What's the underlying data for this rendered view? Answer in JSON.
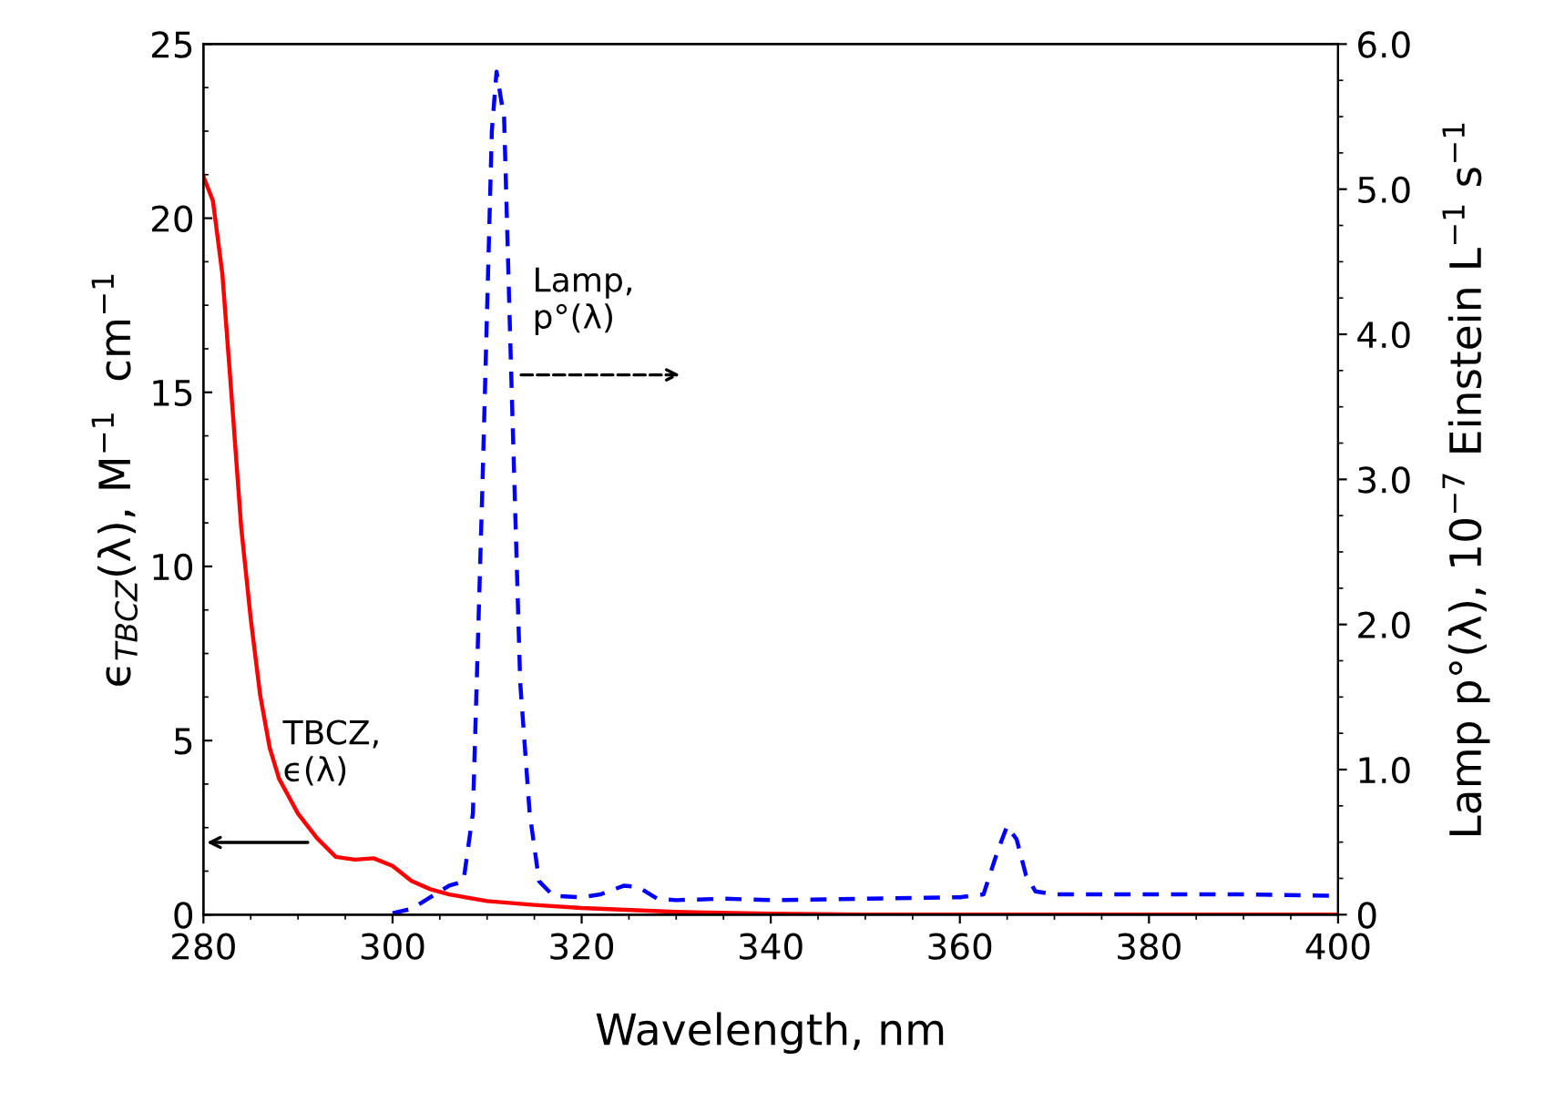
{
  "chart_data": {
    "type": "line",
    "xlabel": "Wavelength, nm",
    "ylabel": "ϵ$_{TBCZ}$(λ), M$^{−1}$  cm$^{−1}$",
    "y2label": "Lamp p°(λ), 10$^{−7}$ Einstein L$^{−1}$ s$^{−1}$",
    "xlim": [
      280,
      400
    ],
    "xticks": [
      280,
      300,
      320,
      340,
      360,
      380,
      400
    ],
    "ylim": [
      0,
      25
    ],
    "yticks": [
      0,
      5,
      10,
      15,
      20,
      25
    ],
    "y2lim": [
      0,
      6
    ],
    "y2ticks": [
      {
        "value": 0,
        "label": "0"
      },
      {
        "value": 1,
        "label": "1.0"
      },
      {
        "value": 2,
        "label": "2.0"
      },
      {
        "value": 3,
        "label": "3.0"
      },
      {
        "value": 4,
        "label": "4.0"
      },
      {
        "value": 5,
        "label": "5.0"
      },
      {
        "value": 6,
        "label": "6.0"
      }
    ],
    "grid": false,
    "legend": false,
    "marker": "none",
    "series": [
      {
        "color": "#ff0000",
        "line_style": "solid",
        "x": [
          280,
          281,
          282,
          283,
          284,
          285,
          286,
          287,
          288,
          289,
          290,
          292,
          294,
          296,
          298,
          300,
          302,
          304,
          306,
          310,
          315,
          320,
          330,
          340,
          350,
          400
        ],
        "values": [
          21.2,
          20.5,
          18.4,
          14.8,
          11.1,
          8.5,
          6.3,
          4.8,
          3.9,
          3.4,
          2.9,
          2.2,
          1.66,
          1.58,
          1.62,
          1.4,
          0.97,
          0.73,
          0.58,
          0.39,
          0.28,
          0.19,
          0.08,
          0.03,
          0,
          0
        ]
      },
      {
        "color": "#0000ff",
        "line_style": "dashed",
        "axis": "y2",
        "x": [
          300,
          302,
          304,
          306,
          307.5,
          308.5,
          309.5,
          310.5,
          311,
          311.8,
          312.5,
          313.5,
          314.5,
          315.5,
          317,
          320,
          322,
          324.5,
          326,
          328,
          330,
          335,
          340,
          350,
          360,
          362.5,
          364,
          365,
          366,
          367,
          368,
          370,
          380,
          390,
          400
        ],
        "values": [
          0.01,
          0.04,
          0.12,
          0.2,
          0.23,
          0.7,
          2.94,
          5.4,
          5.81,
          5.49,
          3.84,
          1.6,
          0.7,
          0.23,
          0.13,
          0.12,
          0.14,
          0.2,
          0.19,
          0.11,
          0.1,
          0.11,
          0.1,
          0.11,
          0.12,
          0.14,
          0.44,
          0.61,
          0.52,
          0.27,
          0.16,
          0.14,
          0.14,
          0.14,
          0.13
        ]
      }
    ],
    "annotations": [
      "TBCZ,\nϵ(λ)",
      "Lamp,\np°(λ)"
    ]
  }
}
